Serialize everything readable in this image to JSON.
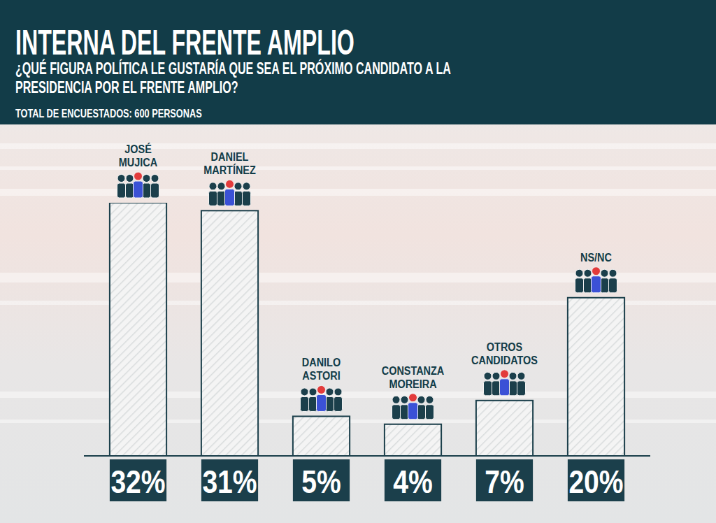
{
  "chart_data": {
    "type": "bar",
    "title": "INTERNA DEL FRENTE AMPLIO",
    "subtitle": "¿QUÉ FIGURA POLÍTICA LE GUSTARÍA QUE SEA EL PRÓXIMO CANDIDATO A LA PRESIDENCIA POR EL FRENTE AMPLIO?",
    "annotations": [
      "TOTAL DE ENCUESTADOS: 600 PERSONAS"
    ],
    "categories": [
      "JOSÉ MUJICA",
      "DANIEL MARTÍNEZ",
      "DANILO ASTORI",
      "CONSTANZA MOREIRA",
      "OTROS CANDIDATOS",
      "NS/NC"
    ],
    "values": [
      32,
      31,
      5,
      4,
      7,
      20
    ],
    "value_labels": [
      "32%",
      "31%",
      "5%",
      "4%",
      "7%",
      "20%"
    ],
    "color": "#1b3f4b",
    "ylim": [
      0,
      32
    ],
    "data_labels": true,
    "tick_labels": false
  }
}
